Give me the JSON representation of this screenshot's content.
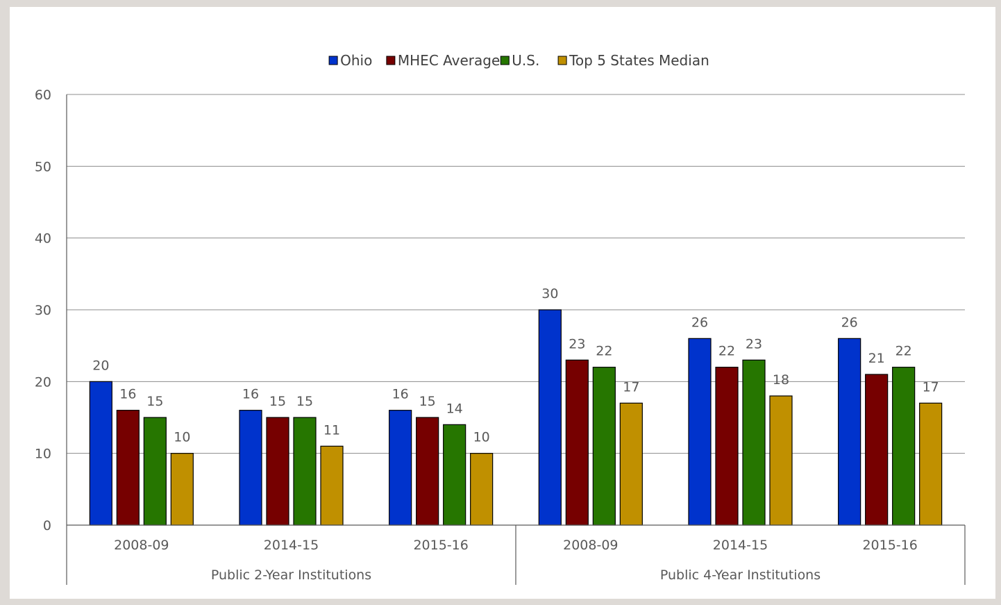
{
  "chart_data": {
    "type": "bar",
    "title": "",
    "xlabel": "",
    "ylabel": "",
    "ylim": [
      0,
      60
    ],
    "yticks": [
      0,
      10,
      20,
      30,
      40,
      50,
      60
    ],
    "grid": true,
    "legend_position": "top-center",
    "groups": [
      {
        "label": "Public 2-Year Institutions",
        "categories": [
          "2008-09",
          "2014-15",
          "2015-16"
        ]
      },
      {
        "label": "Public 4-Year Institutions",
        "categories": [
          "2008-09",
          "2014-15",
          "2015-16"
        ]
      }
    ],
    "categories": [
      "2008-09",
      "2014-15",
      "2015-16",
      "2008-09",
      "2014-15",
      "2015-16"
    ],
    "series": [
      {
        "name": "Ohio",
        "color": "#0033cc",
        "values": [
          20,
          16,
          16,
          30,
          26,
          26
        ]
      },
      {
        "name": "MHEC Average",
        "color": "#760000",
        "values": [
          16,
          15,
          15,
          23,
          22,
          21
        ]
      },
      {
        "name": "U.S.",
        "color": "#267600",
        "values": [
          15,
          15,
          14,
          22,
          23,
          22
        ]
      },
      {
        "name": "Top 5 States Median",
        "color": "#c09000",
        "values": [
          10,
          11,
          10,
          17,
          18,
          17
        ]
      }
    ]
  }
}
